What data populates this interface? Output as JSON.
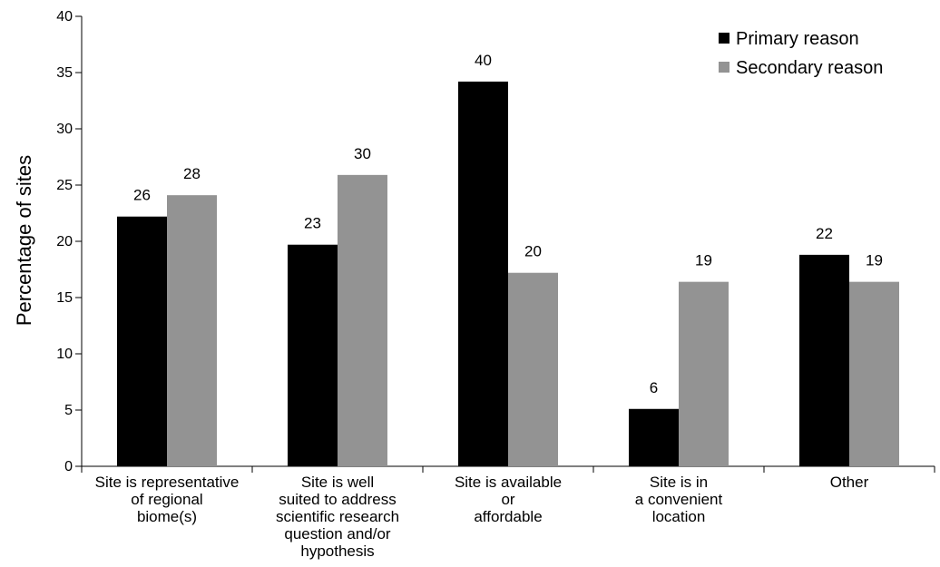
{
  "chart_data": {
    "type": "bar",
    "title": "",
    "xlabel": "",
    "ylabel": "Percentage of sites",
    "ylim": [
      0,
      40
    ],
    "yticks": [
      0,
      5,
      10,
      15,
      20,
      25,
      30,
      35,
      40
    ],
    "categories": [
      [
        "Site is representative",
        "of regional",
        "biome(s)"
      ],
      [
        "Site is well",
        "suited to address",
        "scientific research",
        "question and/or",
        "hypothesis"
      ],
      [
        "Site is available",
        "or",
        "affordable"
      ],
      [
        "Site is in",
        "a convenient",
        "location"
      ],
      [
        "Other"
      ]
    ],
    "series": [
      {
        "name": "Primary reason",
        "color": "#000000",
        "values": [
          22.2,
          19.7,
          34.2,
          5.1,
          18.8
        ],
        "labels": [
          "26",
          "23",
          "40",
          "6",
          "22"
        ]
      },
      {
        "name": "Secondary reason",
        "color": "#939393",
        "values": [
          24.1,
          25.9,
          17.2,
          16.4,
          16.4
        ],
        "labels": [
          "28",
          "30",
          "20",
          "19",
          "19"
        ]
      }
    ],
    "legend_position": "top-right",
    "grid": false
  }
}
